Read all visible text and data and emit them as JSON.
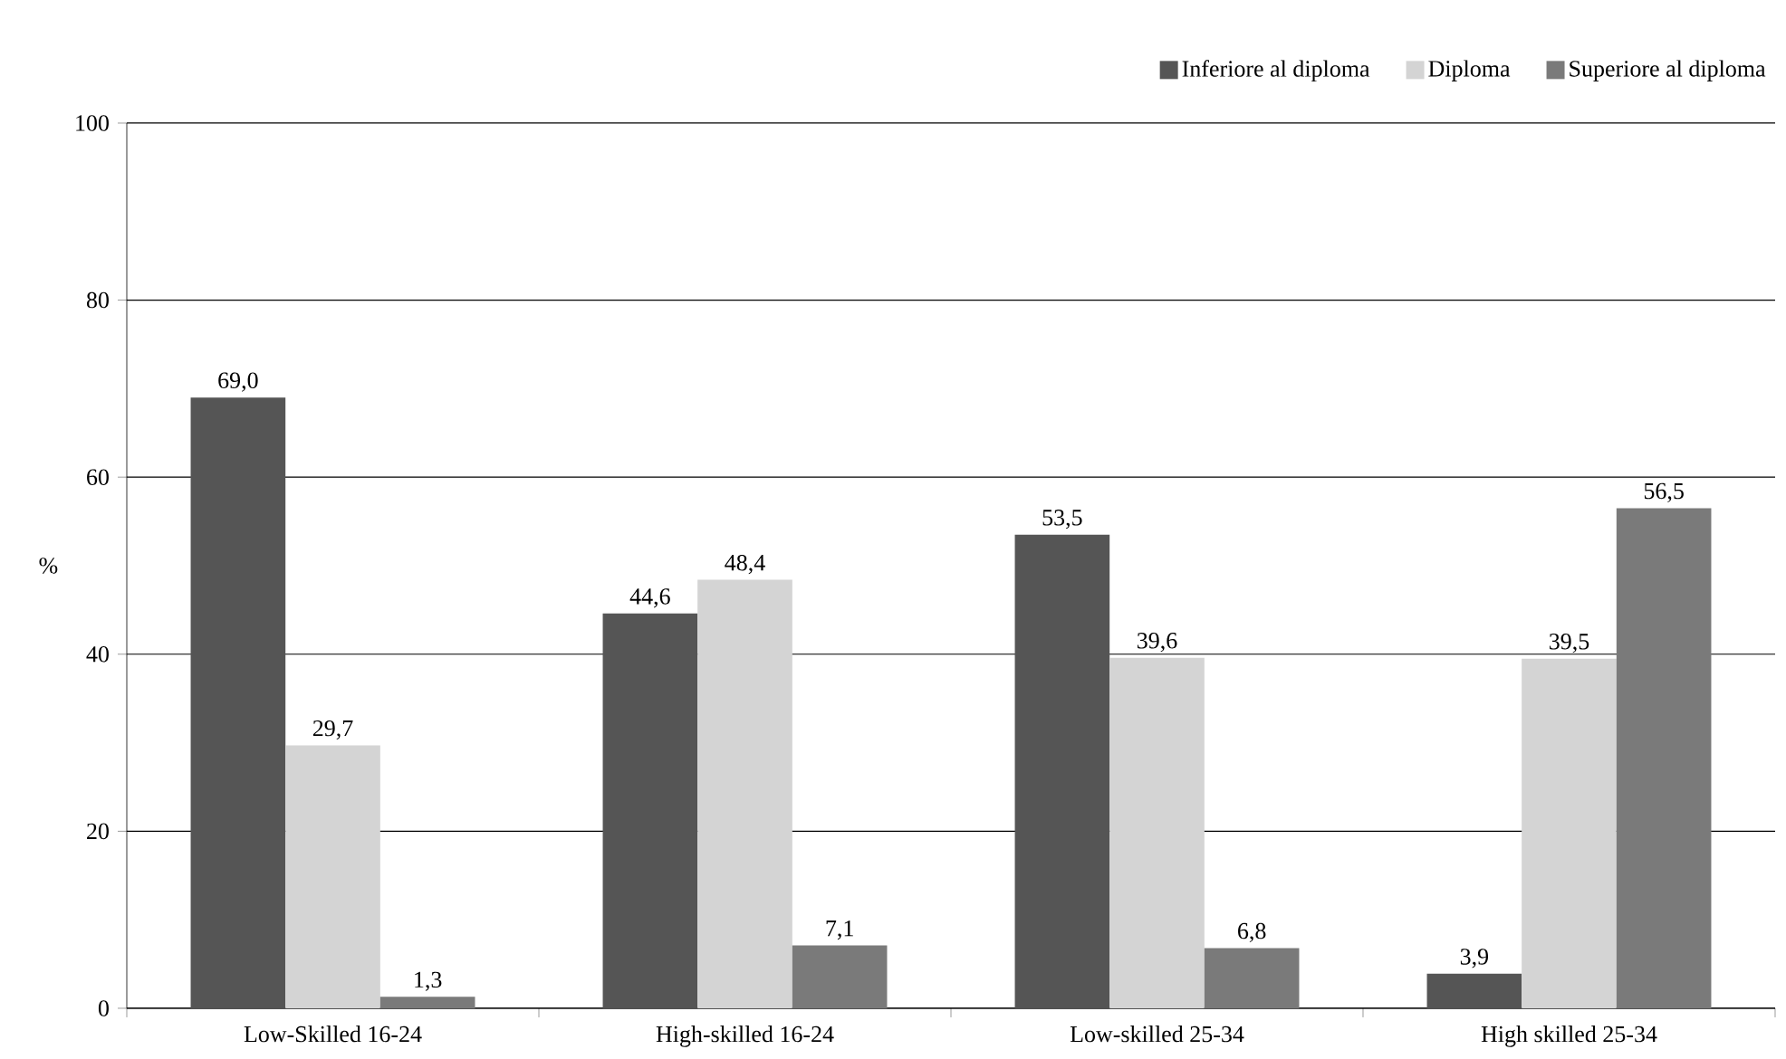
{
  "chart_data": {
    "type": "bar",
    "ylabel": "%",
    "categories": [
      "Low-Skilled 16-24",
      "High-skilled 16-24",
      "Low-skilled 25-34",
      "High skilled 25-34"
    ],
    "series": [
      {
        "name": "Inferiore al diploma",
        "color": "#555555",
        "values": [
          69.0,
          44.6,
          53.5,
          3.9
        ],
        "value_labels": [
          "69,0",
          "44,6",
          "53,5",
          "3,9"
        ]
      },
      {
        "name": "Diploma",
        "color": "#d4d4d4",
        "values": [
          29.7,
          48.4,
          39.6,
          39.5
        ],
        "value_labels": [
          "29,7",
          "48,4",
          "39,6",
          "39,5"
        ]
      },
      {
        "name": "Superiore al diploma",
        "color": "#7a7a7a",
        "values": [
          1.3,
          7.1,
          6.8,
          56.5
        ],
        "value_labels": [
          "1,3",
          "7,1",
          "6,8",
          "56,5"
        ]
      }
    ],
    "ylim": [
      0,
      100
    ],
    "yticks": [
      0,
      20,
      40,
      60,
      80,
      100
    ],
    "grid": "y",
    "legend": "top right"
  }
}
